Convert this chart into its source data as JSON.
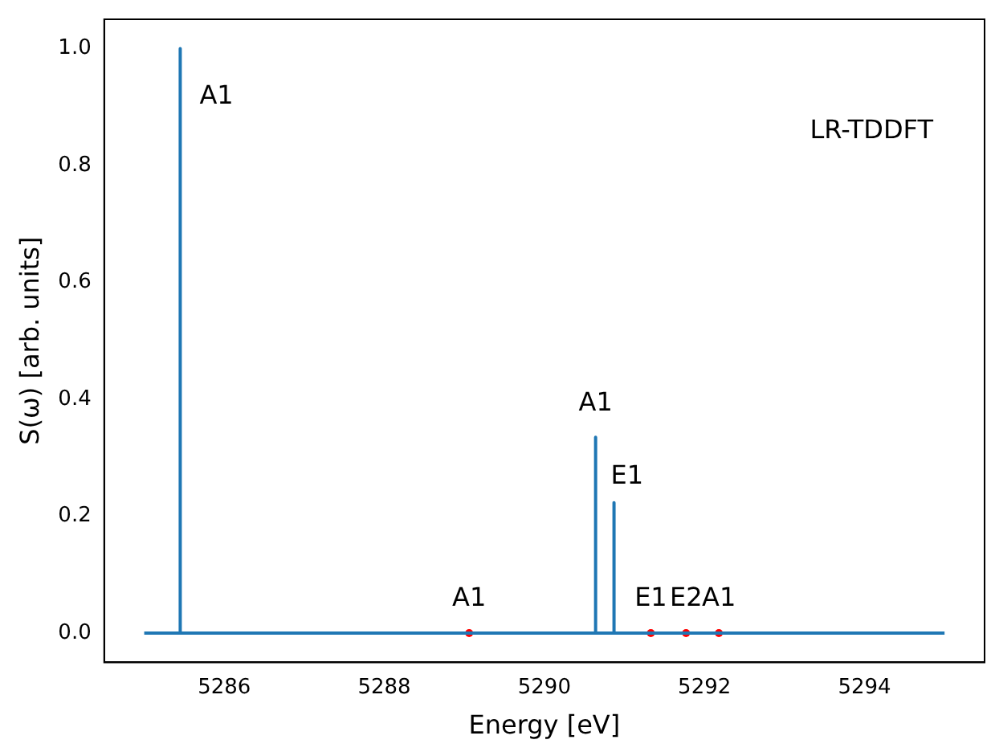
{
  "chart_data": {
    "type": "line",
    "xlabel": "Energy [eV]",
    "ylabel": "S(ω) [arb. units]",
    "xlim": [
      5284.5,
      5295.5
    ],
    "ylim": [
      -0.05,
      1.05
    ],
    "xticks": [
      5286,
      5288,
      5290,
      5292,
      5294
    ],
    "yticks": [
      {
        "value": 0,
        "label": "0.0"
      },
      {
        "value": 0.2,
        "label": "0.2"
      },
      {
        "value": 0.4,
        "label": "0.4"
      },
      {
        "value": 0.6,
        "label": "0.6"
      },
      {
        "value": 0.8,
        "label": "0.8"
      },
      {
        "value": 1,
        "label": "1.0"
      }
    ],
    "grid": false,
    "legend": false,
    "series": [
      {
        "color": "#1f77b4",
        "marker": "none",
        "x": [
          5285,
          5285.45,
          5285.45,
          5285.45,
          5290.64,
          5290.64,
          5290.64,
          5290.87,
          5290.87,
          5290.87,
          5295
        ],
        "values": [
          0,
          0,
          1.0,
          0,
          0,
          0.335,
          0,
          0,
          0.223,
          0,
          0
        ]
      },
      {
        "type": "scatter",
        "color": "#ff0000",
        "marker": "circle",
        "x": [
          5289.06,
          5291.33,
          5291.77,
          5292.18
        ],
        "values": [
          0,
          0,
          0,
          0
        ]
      }
    ],
    "annotations": [
      {
        "text": "A1",
        "x": 5285.45,
        "y": 1.0
      },
      {
        "text": "A1",
        "x": 5290.64,
        "y": 0.335
      },
      {
        "text": "E1",
        "x": 5290.87,
        "y": 0.223
      },
      {
        "text": "A1",
        "x": 5289.06,
        "y": 0
      },
      {
        "text": "E1",
        "x": 5291.33,
        "y": 0
      },
      {
        "text": "E2",
        "x": 5291.77,
        "y": 0
      },
      {
        "text": "A1",
        "x": 5292.18,
        "y": 0
      },
      "LR-TDDFT"
    ]
  }
}
